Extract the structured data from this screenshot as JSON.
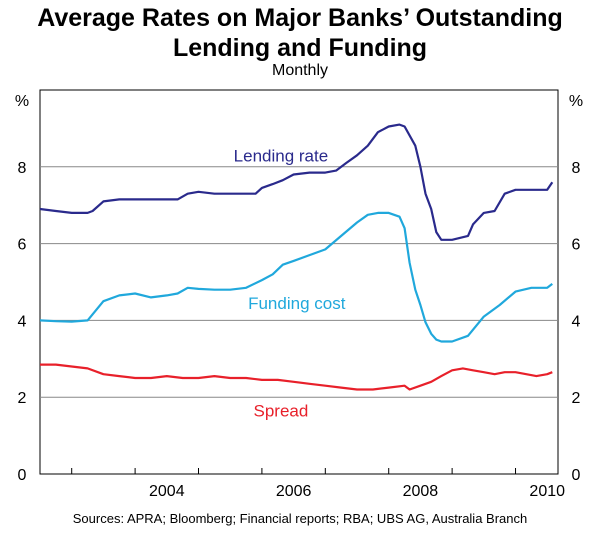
{
  "title_line1": "Average Rates on Major Banks’ Outstanding",
  "title_line2": "Lending and Funding",
  "subtitle": "Monthly",
  "source": "Sources: APRA; Bloomberg; Financial reports; RBA; UBS AG, Australia Branch",
  "chart_data": {
    "type": "line",
    "title": "Average Rates on Major Banks’ Outstanding Lending and Funding",
    "subtitle": "Monthly",
    "xlabel": "",
    "ylabel": "%",
    "ylabel_left": "%",
    "ylabel_right": "%",
    "xlim": [
      2002.5,
      2010.67
    ],
    "ylim": [
      0,
      10
    ],
    "x_ticks": [
      2004,
      2006,
      2008,
      2010
    ],
    "x_tick_labels": [
      "2004",
      "2006",
      "2008",
      "2010"
    ],
    "y_ticks": [
      0,
      2,
      4,
      6,
      8
    ],
    "y_tick_labels": [
      "0",
      "2",
      "4",
      "6",
      "8"
    ],
    "grid": "horizontal",
    "series": [
      {
        "name": "Lending rate",
        "color": "#2a2a8c",
        "label_at": [
          2006.3,
          8.3
        ],
        "x": [
          2002.5,
          2002.75,
          2003.0,
          2003.25,
          2003.33,
          2003.5,
          2003.75,
          2004.0,
          2004.25,
          2004.5,
          2004.67,
          2004.83,
          2005.0,
          2005.25,
          2005.5,
          2005.75,
          2005.9,
          2006.0,
          2006.17,
          2006.33,
          2006.5,
          2006.75,
          2007.0,
          2007.17,
          2007.33,
          2007.5,
          2007.67,
          2007.83,
          2008.0,
          2008.17,
          2008.25,
          2008.42,
          2008.5,
          2008.58,
          2008.67,
          2008.75,
          2008.83,
          2009.0,
          2009.25,
          2009.33,
          2009.5,
          2009.67,
          2009.83,
          2010.0,
          2010.25,
          2010.5,
          2010.58
        ],
        "values": [
          6.9,
          6.85,
          6.8,
          6.8,
          6.85,
          7.1,
          7.15,
          7.15,
          7.15,
          7.15,
          7.15,
          7.3,
          7.35,
          7.3,
          7.3,
          7.3,
          7.3,
          7.45,
          7.55,
          7.65,
          7.8,
          7.85,
          7.85,
          7.9,
          8.1,
          8.3,
          8.55,
          8.9,
          9.05,
          9.1,
          9.05,
          8.55,
          8.0,
          7.3,
          6.9,
          6.3,
          6.1,
          6.1,
          6.2,
          6.5,
          6.8,
          6.85,
          7.3,
          7.4,
          7.4,
          7.4,
          7.6
        ]
      },
      {
        "name": "Funding cost",
        "color": "#20a8dc",
        "label_at": [
          2006.55,
          4.45
        ],
        "x": [
          2002.5,
          2002.75,
          2003.0,
          2003.25,
          2003.5,
          2003.75,
          2004.0,
          2004.25,
          2004.5,
          2004.67,
          2004.83,
          2005.0,
          2005.25,
          2005.5,
          2005.75,
          2006.0,
          2006.17,
          2006.33,
          2006.5,
          2006.75,
          2007.0,
          2007.25,
          2007.5,
          2007.67,
          2007.83,
          2008.0,
          2008.17,
          2008.25,
          2008.33,
          2008.42,
          2008.5,
          2008.58,
          2008.67,
          2008.75,
          2008.83,
          2009.0,
          2009.25,
          2009.5,
          2009.75,
          2010.0,
          2010.25,
          2010.5,
          2010.58
        ],
        "values": [
          4.0,
          3.98,
          3.97,
          4.0,
          4.5,
          4.65,
          4.7,
          4.6,
          4.65,
          4.7,
          4.85,
          4.82,
          4.8,
          4.8,
          4.85,
          5.05,
          5.2,
          5.45,
          5.55,
          5.7,
          5.85,
          6.2,
          6.55,
          6.75,
          6.8,
          6.8,
          6.7,
          6.4,
          5.5,
          4.8,
          4.4,
          3.95,
          3.65,
          3.5,
          3.45,
          3.45,
          3.6,
          4.1,
          4.4,
          4.75,
          4.85,
          4.85,
          4.95
        ]
      },
      {
        "name": "Spread",
        "color": "#e8202a",
        "label_at": [
          2006.3,
          1.65
        ],
        "x": [
          2002.5,
          2002.75,
          2003.0,
          2003.25,
          2003.5,
          2003.75,
          2004.0,
          2004.25,
          2004.5,
          2004.75,
          2005.0,
          2005.25,
          2005.5,
          2005.75,
          2006.0,
          2006.25,
          2006.5,
          2006.75,
          2007.0,
          2007.25,
          2007.5,
          2007.75,
          2008.0,
          2008.25,
          2008.33,
          2008.5,
          2008.67,
          2008.83,
          2009.0,
          2009.17,
          2009.33,
          2009.5,
          2009.67,
          2009.83,
          2010.0,
          2010.17,
          2010.33,
          2010.5,
          2010.58
        ],
        "values": [
          2.85,
          2.85,
          2.8,
          2.75,
          2.6,
          2.55,
          2.5,
          2.5,
          2.55,
          2.5,
          2.5,
          2.55,
          2.5,
          2.5,
          2.45,
          2.45,
          2.4,
          2.35,
          2.3,
          2.25,
          2.2,
          2.2,
          2.25,
          2.3,
          2.2,
          2.3,
          2.4,
          2.55,
          2.7,
          2.75,
          2.7,
          2.65,
          2.6,
          2.65,
          2.65,
          2.6,
          2.55,
          2.6,
          2.65
        ]
      }
    ]
  }
}
